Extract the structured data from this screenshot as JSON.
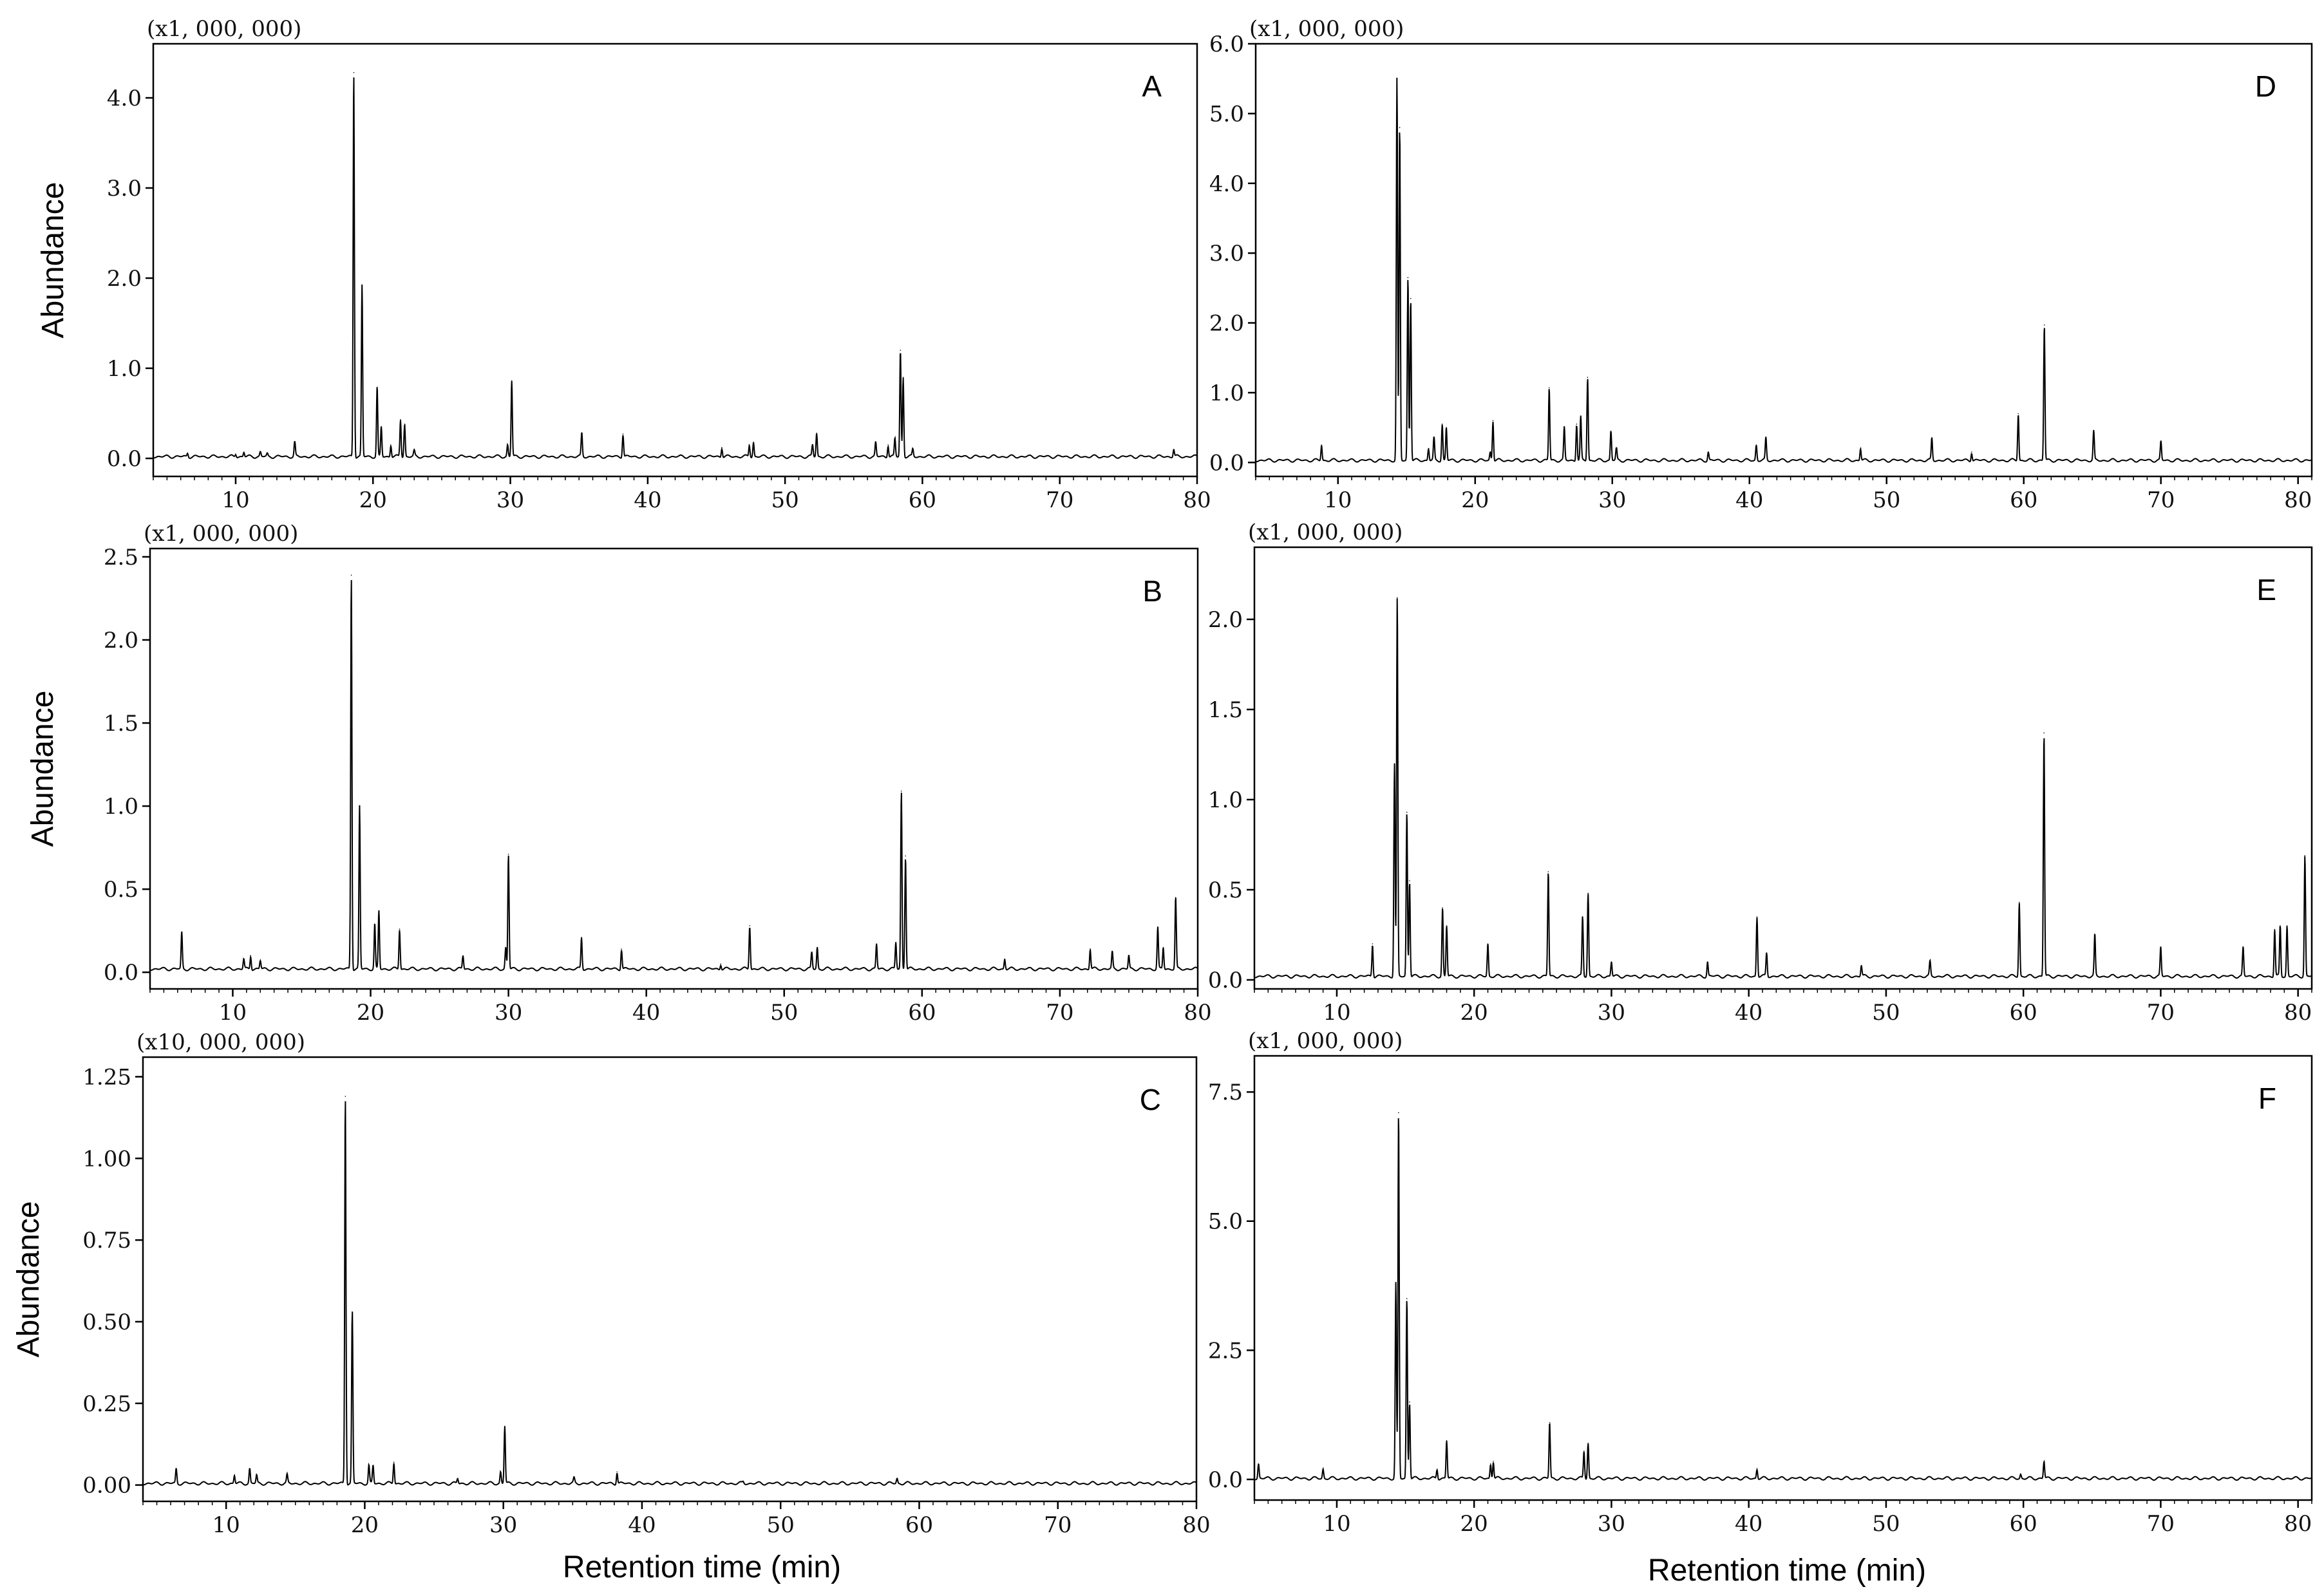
{
  "figure": {
    "ylabel": "Abundance",
    "xlabel": "Retention time (min)"
  },
  "chart_data": [
    {
      "panel": "A",
      "type": "line",
      "multiplier": "(x1, 000, 000)",
      "xlim": [
        4,
        80
      ],
      "ylim": [
        -0.2,
        4.6
      ],
      "xticks": [
        10,
        20,
        30,
        40,
        50,
        60,
        70,
        80
      ],
      "yticks": [
        0.0,
        1.0,
        2.0,
        3.0,
        4.0
      ],
      "ytick_labels": [
        "0.0",
        "1.0",
        "2.0",
        "3.0",
        "4.0"
      ],
      "baseline": 0.02,
      "peaks": [
        [
          6.5,
          0.06
        ],
        [
          10.0,
          0.05
        ],
        [
          10.6,
          0.07
        ],
        [
          11.8,
          0.07
        ],
        [
          12.3,
          0.05
        ],
        [
          14.3,
          0.18
        ],
        [
          18.6,
          4.28
        ],
        [
          19.2,
          1.92
        ],
        [
          20.3,
          0.79
        ],
        [
          20.6,
          0.35
        ],
        [
          21.3,
          0.15
        ],
        [
          22.0,
          0.43
        ],
        [
          22.3,
          0.38
        ],
        [
          23.0,
          0.08
        ],
        [
          29.8,
          0.15
        ],
        [
          30.1,
          0.86
        ],
        [
          35.2,
          0.28
        ],
        [
          38.2,
          0.27
        ],
        [
          45.4,
          0.12
        ],
        [
          47.4,
          0.15
        ],
        [
          47.7,
          0.18
        ],
        [
          52.0,
          0.15
        ],
        [
          52.3,
          0.28
        ],
        [
          56.6,
          0.18
        ],
        [
          57.5,
          0.15
        ],
        [
          58.0,
          0.22
        ],
        [
          58.4,
          1.2
        ],
        [
          58.6,
          0.9
        ],
        [
          59.3,
          0.1
        ],
        [
          78.3,
          0.1
        ]
      ]
    },
    {
      "panel": "B",
      "type": "line",
      "multiplier": "(x1, 000, 000)",
      "xlim": [
        4,
        80
      ],
      "ylim": [
        -0.1,
        2.55
      ],
      "xticks": [
        10,
        20,
        30,
        40,
        50,
        60,
        70,
        80
      ],
      "yticks": [
        0.0,
        0.5,
        1.0,
        1.5,
        2.0,
        2.5
      ],
      "ytick_labels": [
        "0.0",
        "0.5",
        "1.0",
        "1.5",
        "2.0",
        "2.5"
      ],
      "baseline": 0.02,
      "peaks": [
        [
          6.3,
          0.24
        ],
        [
          10.8,
          0.08
        ],
        [
          11.3,
          0.1
        ],
        [
          12.0,
          0.07
        ],
        [
          18.6,
          2.39
        ],
        [
          19.2,
          1.0
        ],
        [
          20.3,
          0.29
        ],
        [
          20.6,
          0.37
        ],
        [
          22.1,
          0.26
        ],
        [
          26.7,
          0.1
        ],
        [
          29.8,
          0.15
        ],
        [
          30.0,
          0.71
        ],
        [
          35.3,
          0.21
        ],
        [
          38.2,
          0.14
        ],
        [
          45.4,
          0.05
        ],
        [
          47.5,
          0.28
        ],
        [
          52.0,
          0.12
        ],
        [
          52.4,
          0.15
        ],
        [
          56.7,
          0.17
        ],
        [
          58.1,
          0.18
        ],
        [
          58.5,
          1.09
        ],
        [
          58.8,
          0.7
        ],
        [
          66.0,
          0.08
        ],
        [
          72.2,
          0.14
        ],
        [
          73.8,
          0.12
        ],
        [
          75.0,
          0.1
        ],
        [
          77.1,
          0.27
        ],
        [
          77.5,
          0.15
        ],
        [
          78.4,
          0.45
        ]
      ]
    },
    {
      "panel": "C",
      "type": "line",
      "multiplier": "(x10, 000, 000)",
      "xlim": [
        4,
        80
      ],
      "ylim": [
        -0.05,
        1.31
      ],
      "xticks": [
        10,
        20,
        30,
        40,
        50,
        60,
        70,
        80
      ],
      "yticks": [
        0.0,
        0.25,
        0.5,
        0.75,
        1.0,
        1.25
      ],
      "ytick_labels": [
        "0.00",
        "0.25",
        "0.50",
        "0.75",
        "1.00",
        "1.25"
      ],
      "baseline": 0.005,
      "peaks": [
        [
          6.4,
          0.05
        ],
        [
          10.6,
          0.03
        ],
        [
          11.7,
          0.05
        ],
        [
          12.2,
          0.03
        ],
        [
          14.4,
          0.03
        ],
        [
          18.6,
          1.19
        ],
        [
          19.1,
          0.53
        ],
        [
          20.3,
          0.06
        ],
        [
          20.6,
          0.06
        ],
        [
          22.1,
          0.07
        ],
        [
          26.7,
          0.02
        ],
        [
          29.8,
          0.04
        ],
        [
          30.1,
          0.18
        ],
        [
          35.1,
          0.02
        ],
        [
          38.2,
          0.04
        ],
        [
          47.3,
          0.01
        ],
        [
          58.4,
          0.02
        ]
      ]
    },
    {
      "panel": "D",
      "type": "line",
      "multiplier": "(x1, 000, 000)",
      "xlim": [
        4,
        81
      ],
      "ylim": [
        -0.2,
        6.0
      ],
      "xticks": [
        10,
        20,
        30,
        40,
        50,
        60,
        70,
        80
      ],
      "yticks": [
        0.0,
        1.0,
        2.0,
        3.0,
        4.0,
        5.0,
        6.0
      ],
      "ytick_labels": [
        "0.0",
        "1.0",
        "2.0",
        "3.0",
        "4.0",
        "5.0",
        "6.0"
      ],
      "baseline": 0.03,
      "peaks": [
        [
          8.8,
          0.25
        ],
        [
          14.3,
          5.5
        ],
        [
          14.5,
          4.8
        ],
        [
          15.1,
          2.65
        ],
        [
          15.3,
          2.35
        ],
        [
          16.6,
          0.2
        ],
        [
          17.0,
          0.35
        ],
        [
          17.6,
          0.55
        ],
        [
          17.9,
          0.5
        ],
        [
          21.1,
          0.15
        ],
        [
          21.3,
          0.6
        ],
        [
          25.4,
          1.07
        ],
        [
          26.5,
          0.5
        ],
        [
          27.4,
          0.55
        ],
        [
          27.7,
          0.65
        ],
        [
          28.2,
          1.22
        ],
        [
          29.9,
          0.45
        ],
        [
          30.3,
          0.2
        ],
        [
          37.0,
          0.15
        ],
        [
          40.5,
          0.25
        ],
        [
          41.2,
          0.35
        ],
        [
          48.1,
          0.2
        ],
        [
          53.3,
          0.35
        ],
        [
          56.2,
          0.15
        ],
        [
          59.6,
          0.7
        ],
        [
          61.5,
          1.97
        ],
        [
          65.1,
          0.45
        ],
        [
          70.0,
          0.3
        ]
      ]
    },
    {
      "panel": "E",
      "type": "line",
      "multiplier": "(x1, 000, 000)",
      "xlim": [
        4,
        81
      ],
      "ylim": [
        -0.05,
        2.4
      ],
      "xticks": [
        10,
        20,
        30,
        40,
        50,
        60,
        70,
        80
      ],
      "yticks": [
        0.0,
        0.5,
        1.0,
        1.5,
        2.0
      ],
      "ytick_labels": [
        "0.0",
        "0.5",
        "1.0",
        "1.5",
        "2.0"
      ],
      "baseline": 0.02,
      "peaks": [
        [
          12.6,
          0.2
        ],
        [
          14.2,
          1.2
        ],
        [
          14.4,
          2.12
        ],
        [
          15.1,
          0.93
        ],
        [
          15.3,
          0.55
        ],
        [
          17.7,
          0.4
        ],
        [
          18.0,
          0.3
        ],
        [
          21.0,
          0.2
        ],
        [
          25.4,
          0.6
        ],
        [
          27.9,
          0.35
        ],
        [
          28.3,
          0.48
        ],
        [
          30.0,
          0.1
        ],
        [
          37.0,
          0.1
        ],
        [
          40.6,
          0.35
        ],
        [
          41.3,
          0.15
        ],
        [
          48.2,
          0.08
        ],
        [
          53.2,
          0.1
        ],
        [
          59.7,
          0.43
        ],
        [
          61.5,
          1.37
        ],
        [
          65.2,
          0.25
        ],
        [
          70.0,
          0.18
        ],
        [
          76.0,
          0.18
        ],
        [
          78.3,
          0.28
        ],
        [
          78.7,
          0.3
        ],
        [
          79.2,
          0.3
        ],
        [
          80.5,
          0.69
        ]
      ]
    },
    {
      "panel": "F",
      "type": "line",
      "multiplier": "(x1, 000, 000)",
      "xlim": [
        4,
        81
      ],
      "ylim": [
        -0.4,
        8.2
      ],
      "xticks": [
        10,
        20,
        30,
        40,
        50,
        60,
        70,
        80
      ],
      "yticks": [
        0.0,
        2.5,
        5.0,
        7.5
      ],
      "ytick_labels": [
        "0.0",
        "2.5",
        "5.0",
        "7.5"
      ],
      "baseline": 0.02,
      "peaks": [
        [
          4.3,
          0.3
        ],
        [
          9.0,
          0.2
        ],
        [
          14.3,
          3.8
        ],
        [
          14.5,
          7.1
        ],
        [
          15.1,
          3.5
        ],
        [
          15.3,
          1.5
        ],
        [
          17.3,
          0.2
        ],
        [
          18.0,
          0.75
        ],
        [
          21.2,
          0.3
        ],
        [
          21.4,
          0.35
        ],
        [
          25.5,
          1.1
        ],
        [
          28.0,
          0.55
        ],
        [
          28.3,
          0.7
        ],
        [
          40.6,
          0.2
        ],
        [
          59.8,
          0.1
        ],
        [
          61.5,
          0.35
        ]
      ]
    }
  ]
}
